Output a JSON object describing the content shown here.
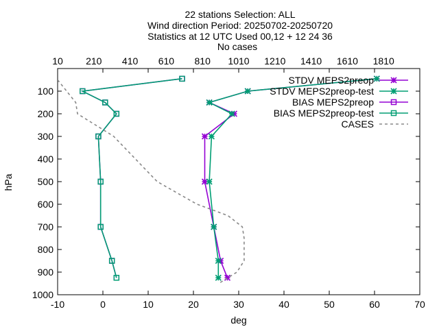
{
  "chart_data": {
    "type": "line",
    "title_lines": [
      "22 stations Selection: ALL",
      "Wind direction  Period: 20250702-20250720",
      "Statistics at 12 UTC  Used 00,12 + 12 24 36",
      "No cases"
    ],
    "xlabel": "deg",
    "ylabel": "hPa",
    "xlim": [
      -10,
      70
    ],
    "ylim": [
      1000,
      0
    ],
    "x_ticks": [
      "-10",
      "0",
      "10",
      "20",
      "30",
      "40",
      "50",
      "60",
      "70"
    ],
    "y_ticks": [
      "100",
      "200",
      "300",
      "400",
      "500",
      "600",
      "700",
      "800",
      "900",
      "1000"
    ],
    "x2_label": "",
    "x2lim": [
      10,
      2010
    ],
    "x2_ticks": [
      "10",
      "210",
      "410",
      "610",
      "810",
      "1010",
      "1210",
      "1410",
      "1610",
      "1810"
    ],
    "grid": false,
    "legend_position": "top-right",
    "series": [
      {
        "name": "STDV MEPS2preop",
        "color": "#9400d3",
        "marker": "star",
        "axis": "x1",
        "points": [
          [
            60.5,
            45
          ],
          [
            32,
            100
          ],
          [
            23.5,
            150
          ],
          [
            29,
            200
          ],
          [
            22.5,
            300
          ],
          [
            22.5,
            500
          ],
          [
            24.5,
            700
          ],
          [
            26,
            850
          ],
          [
            27.5,
            925
          ]
        ]
      },
      {
        "name": "STDV MEPS2preop-test",
        "color": "#009e73",
        "marker": "star",
        "axis": "x1",
        "points": [
          [
            60.5,
            45
          ],
          [
            32,
            100
          ],
          [
            23.5,
            150
          ],
          [
            28.5,
            200
          ],
          [
            24,
            300
          ],
          [
            23.5,
            500
          ],
          [
            24.5,
            700
          ],
          [
            25.5,
            850
          ],
          [
            25.5,
            925
          ]
        ]
      },
      {
        "name": "BIAS MEPS2preop",
        "color": "#9400d3",
        "marker": "square",
        "axis": "x1",
        "points": [
          [
            17.5,
            45
          ],
          [
            -4.5,
            100
          ],
          [
            0.5,
            150
          ],
          [
            3,
            200
          ],
          [
            -1,
            300
          ],
          [
            -0.5,
            500
          ],
          [
            -0.5,
            700
          ],
          [
            2,
            850
          ],
          [
            3,
            925
          ]
        ]
      },
      {
        "name": "BIAS MEPS2preop-test",
        "color": "#009e73",
        "marker": "square",
        "axis": "x1",
        "points": [
          [
            17.5,
            45
          ],
          [
            -4.5,
            100
          ],
          [
            0.5,
            150
          ],
          [
            3,
            200
          ],
          [
            -1,
            300
          ],
          [
            -0.5,
            500
          ],
          [
            -0.5,
            700
          ],
          [
            2,
            850
          ],
          [
            3,
            925
          ]
        ]
      },
      {
        "name": "CASES",
        "color": "#888888",
        "marker": "none",
        "dashed": true,
        "axis": "x2",
        "points": [
          [
            10,
            50
          ],
          [
            110,
            150
          ],
          [
            120,
            200
          ],
          [
            280,
            280
          ],
          [
            320,
            300
          ],
          [
            440,
            400
          ],
          [
            560,
            500
          ],
          [
            780,
            600
          ],
          [
            950,
            650
          ],
          [
            1030,
            700
          ],
          [
            1040,
            750
          ],
          [
            1040,
            850
          ],
          [
            1000,
            900
          ],
          [
            900,
            950
          ]
        ]
      }
    ]
  }
}
